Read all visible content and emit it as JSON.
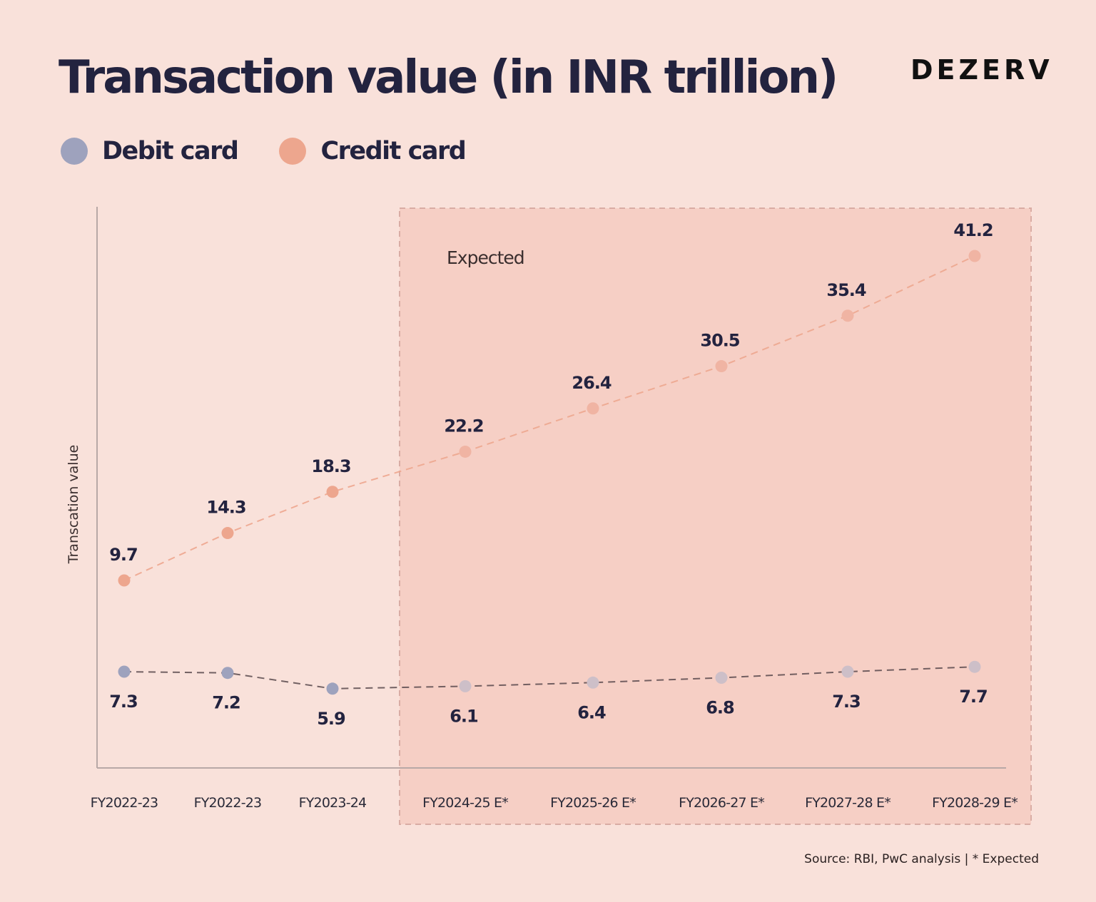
{
  "header": {
    "title": "Transaction value (in INR trillion)",
    "brand": "DEZERV"
  },
  "legend": [
    {
      "label": "Debit card",
      "color": "#9ea2bd"
    },
    {
      "label": "Credit card",
      "color": "#eda68e"
    }
  ],
  "footer": {
    "source": "Source: RBI, PwC analysis | * Expected"
  },
  "chart_data": {
    "type": "line",
    "title": "Transaction value (in INR trillion)",
    "xlabel": "",
    "ylabel": "Transcation value",
    "categories": [
      "FY2022-23",
      "FY2022-23",
      "FY2023-24",
      "FY2024-25 E*",
      "FY2025-26 E*",
      "FY2026-27 E*",
      "FY2027-28 E*",
      "FY2028-29 E*"
    ],
    "series": [
      {
        "name": "Debit card",
        "color": "#9ea2bd",
        "line_color": "#5a4a4e",
        "values": [
          7.3,
          7.2,
          5.9,
          6.1,
          6.4,
          6.8,
          7.3,
          7.7
        ]
      },
      {
        "name": "Credit card",
        "color": "#eda68e",
        "line_color": "#eda68e",
        "values": [
          9.7,
          14.3,
          18.3,
          22.2,
          26.4,
          30.5,
          35.4,
          41.2
        ]
      }
    ],
    "expected_region": {
      "label": "Expected",
      "from_category_index": 3,
      "to_category_index": 7,
      "color": "#f6cfc5"
    },
    "grid": false,
    "legend_position": "top-left",
    "data_labels": true
  }
}
